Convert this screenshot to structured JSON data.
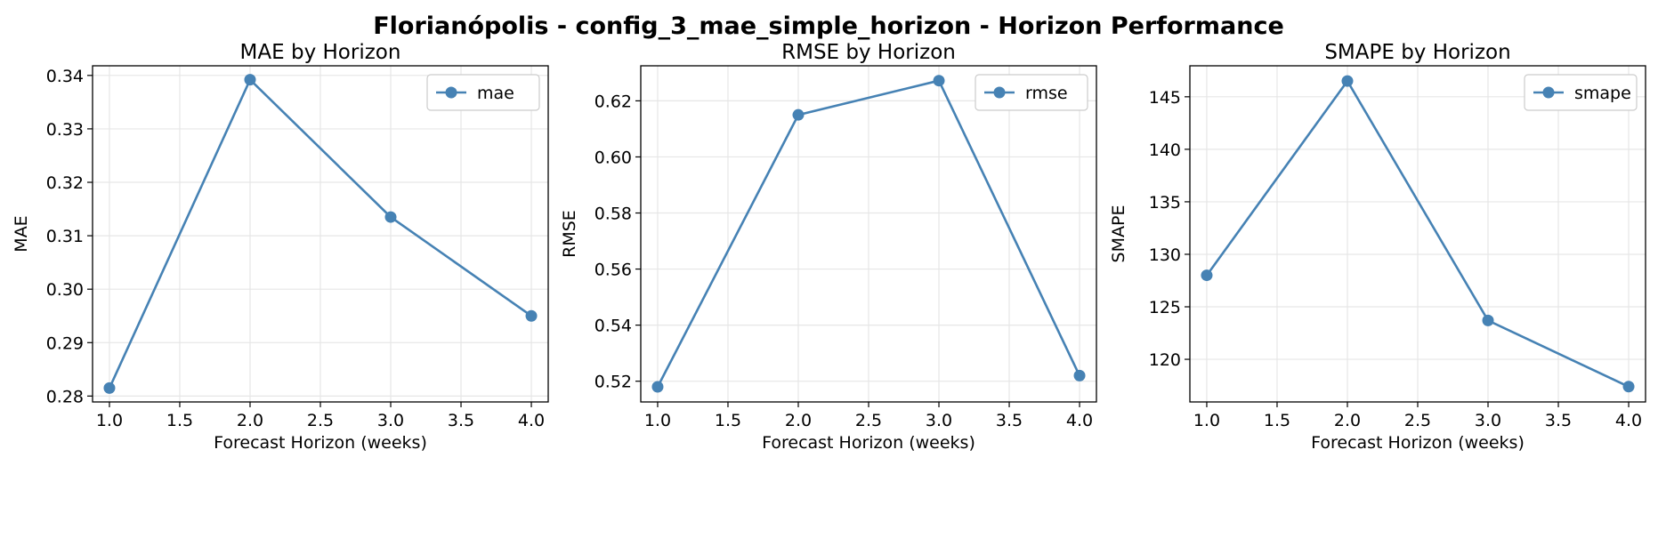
{
  "figure": {
    "title": "Florianópolis - config_3_mae_simple_horizon - Horizon Performance"
  },
  "colors": {
    "series": "#4682b4",
    "grid": "#e6e6e6",
    "axis": "#000000"
  },
  "chart_data": [
    {
      "type": "line",
      "title": "MAE by Horizon",
      "xlabel": "Forecast Horizon (weeks)",
      "ylabel": "MAE",
      "x": [
        1.0,
        2.0,
        3.0,
        4.0
      ],
      "series": [
        {
          "name": "mae",
          "values": [
            0.2815,
            0.3392,
            0.3135,
            0.295
          ]
        }
      ],
      "xlim": [
        0.88,
        4.12
      ],
      "ylim": [
        0.2789,
        0.3418
      ],
      "xticks": [
        "1.0",
        "1.5",
        "2.0",
        "2.5",
        "3.0",
        "3.5",
        "4.0"
      ],
      "yticks": [
        "0.28",
        "0.29",
        "0.30",
        "0.31",
        "0.32",
        "0.33",
        "0.34"
      ],
      "grid": true,
      "legend": "upper right"
    },
    {
      "type": "line",
      "title": "RMSE by Horizon",
      "xlabel": "Forecast Horizon (weeks)",
      "ylabel": "RMSE",
      "x": [
        1.0,
        2.0,
        3.0,
        4.0
      ],
      "series": [
        {
          "name": "rmse",
          "values": [
            0.518,
            0.615,
            0.6272,
            0.522
          ]
        }
      ],
      "xlim": [
        0.88,
        4.12
      ],
      "ylim": [
        0.5126,
        0.6325
      ],
      "xticks": [
        "1.0",
        "1.5",
        "2.0",
        "2.5",
        "3.0",
        "3.5",
        "4.0"
      ],
      "yticks": [
        "0.52",
        "0.54",
        "0.56",
        "0.58",
        "0.60",
        "0.62"
      ],
      "grid": true,
      "legend": "upper right"
    },
    {
      "type": "line",
      "title": "SMAPE by Horizon",
      "xlabel": "Forecast Horizon (weeks)",
      "ylabel": "SMAPE",
      "x": [
        1.0,
        2.0,
        3.0,
        4.0
      ],
      "series": [
        {
          "name": "smape",
          "values": [
            128.0,
            146.5,
            123.7,
            117.4
          ]
        }
      ],
      "xlim": [
        0.88,
        4.12
      ],
      "ylim": [
        115.94,
        147.95
      ],
      "xticks": [
        "1.0",
        "1.5",
        "2.0",
        "2.5",
        "3.0",
        "3.5",
        "4.0"
      ],
      "yticks": [
        "120",
        "125",
        "130",
        "135",
        "140",
        "145"
      ],
      "grid": true,
      "legend": "upper right"
    }
  ]
}
